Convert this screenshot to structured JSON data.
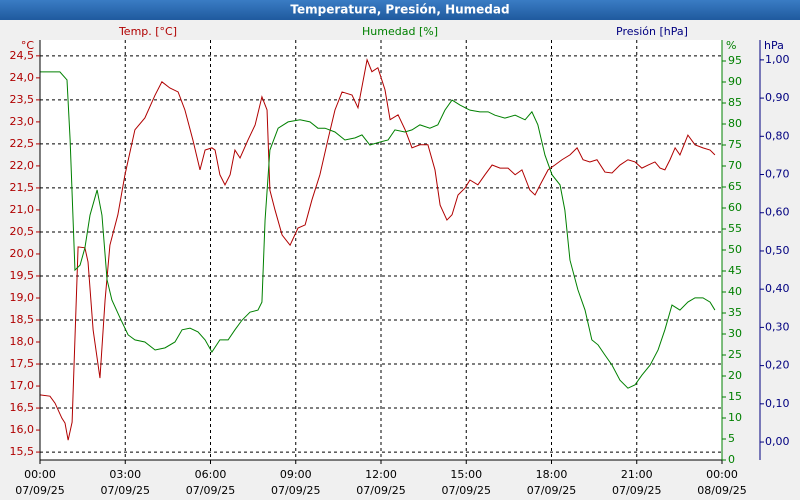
{
  "chart_data": {
    "type": "line",
    "title": "Temperatura, Presión, Humedad",
    "xlim": [
      0,
      24
    ],
    "xticks": [
      {
        "value": 0,
        "label": "00:00"
      },
      {
        "value": 3,
        "label": "03:00"
      },
      {
        "value": 6,
        "label": "06:00"
      },
      {
        "value": 9,
        "label": "09:00"
      },
      {
        "value": 12,
        "label": "12:00"
      },
      {
        "value": 15,
        "label": "15:00"
      },
      {
        "value": 18,
        "label": "18:00"
      },
      {
        "value": 21,
        "label": "21:00"
      },
      {
        "value": 24,
        "label": "00:00"
      }
    ],
    "xtick_dates": [
      "07/09/25",
      "07/09/25",
      "07/09/25",
      "07/09/25",
      "07/09/25",
      "07/09/25",
      "07/09/25",
      "07/09/25",
      "08/09/25"
    ],
    "yunit": "°C",
    "ylim": [
      15.32,
      24.86
    ],
    "yticks": [
      {
        "value": 24.5,
        "label": "24,5"
      },
      {
        "value": 24,
        "label": "24,0"
      },
      {
        "value": 23.5,
        "label": "23,5"
      },
      {
        "value": 23,
        "label": "23,0"
      },
      {
        "value": 22.5,
        "label": "22,5"
      },
      {
        "value": 22,
        "label": "22,0"
      },
      {
        "value": 21.5,
        "label": "21,5"
      },
      {
        "value": 21,
        "label": "21,0"
      },
      {
        "value": 20.5,
        "label": "20,5"
      },
      {
        "value": 20,
        "label": "20,0"
      },
      {
        "value": 19.5,
        "label": "19,5"
      },
      {
        "value": 19,
        "label": "19,0"
      },
      {
        "value": 18.5,
        "label": "18,5"
      },
      {
        "value": 18,
        "label": "18,0"
      },
      {
        "value": 17.5,
        "label": "17,5"
      },
      {
        "value": 17,
        "label": "17,0"
      },
      {
        "value": 16.5,
        "label": "16,5"
      },
      {
        "value": 16,
        "label": "16,0"
      },
      {
        "value": 15.5,
        "label": "15,5"
      }
    ],
    "y2unit": "%",
    "y2lim": [
      0,
      100
    ],
    "y2ticks": [
      0,
      5,
      10,
      15,
      20,
      25,
      30,
      35,
      40,
      45,
      50,
      55,
      60,
      65,
      70,
      75,
      80,
      85,
      90,
      95
    ],
    "y3label": "Presión [hPa]",
    "y3unit": "hPa",
    "y3lim": [
      -0.047,
      1.052
    ],
    "y3ticks": [
      {
        "value": 0,
        "label": "0,00"
      },
      {
        "value": 0.1,
        "label": "0,10"
      },
      {
        "value": 0.2,
        "label": "0,20"
      },
      {
        "value": 0.3,
        "label": "0,30"
      },
      {
        "value": 0.4,
        "label": "0,40"
      },
      {
        "value": 0.5,
        "label": "0,50"
      },
      {
        "value": 0.6,
        "label": "0,60"
      },
      {
        "value": 0.7,
        "label": "0,70"
      },
      {
        "value": 0.8,
        "label": "0,80"
      },
      {
        "value": 0.9,
        "label": "0,90"
      },
      {
        "value": 1,
        "label": "1,00"
      }
    ],
    "grid": true,
    "series": [
      {
        "name": "Temp. [°C]",
        "color": "#b00000",
        "axis": "y",
        "x": [
          0,
          0.35,
          0.53,
          0.77,
          0.88,
          0.99,
          1.13,
          1.34,
          1.58,
          1.69,
          1.87,
          2.11,
          2.29,
          2.46,
          2.74,
          2.99,
          3.34,
          3.69,
          4.05,
          4.29,
          4.57,
          4.86,
          5.1,
          5.38,
          5.63,
          5.81,
          6.05,
          6.16,
          6.33,
          6.51,
          6.69,
          6.86,
          7.04,
          7.32,
          7.57,
          7.81,
          7.99,
          8.09,
          8.27,
          8.52,
          8.8,
          9.08,
          9.33,
          9.57,
          9.85,
          10.13,
          10.38,
          10.63,
          10.98,
          11.19,
          11.51,
          11.68,
          11.89,
          12.14,
          12.32,
          12.6,
          12.85,
          13.09,
          13.37,
          13.65,
          13.9,
          14.08,
          14.32,
          14.5,
          14.71,
          14.96,
          15.13,
          15.41,
          15.66,
          15.91,
          16.19,
          16.47,
          16.72,
          16.96,
          17.24,
          17.42,
          17.6,
          17.88,
          18.12,
          18.37,
          18.65,
          18.9,
          19.11,
          19.35,
          19.6,
          19.88,
          20.13,
          20.41,
          20.69,
          20.94,
          21.18,
          21.4,
          21.64,
          21.82,
          21.99,
          22.17,
          22.35,
          22.52,
          22.8,
          23.05,
          23.33,
          23.58,
          23.75
        ],
        "values": [
          16.8,
          16.77,
          16.61,
          16.27,
          16.16,
          15.77,
          16.18,
          20.16,
          20.14,
          19.82,
          18.27,
          17.18,
          18.95,
          20.2,
          20.89,
          21.8,
          22.82,
          23.09,
          23.61,
          23.91,
          23.77,
          23.68,
          23.27,
          22.59,
          21.91,
          22.36,
          22.41,
          22.36,
          21.8,
          21.57,
          21.8,
          22.36,
          22.18,
          22.59,
          22.93,
          23.57,
          23.27,
          21.45,
          21.0,
          20.43,
          20.2,
          20.59,
          20.66,
          21.23,
          21.8,
          22.59,
          23.27,
          23.68,
          23.61,
          23.32,
          24.41,
          24.14,
          24.23,
          23.73,
          23.05,
          23.16,
          22.82,
          22.41,
          22.48,
          22.48,
          21.91,
          21.11,
          20.77,
          20.89,
          21.34,
          21.5,
          21.68,
          21.57,
          21.8,
          22.02,
          21.95,
          21.95,
          21.8,
          21.91,
          21.45,
          21.34,
          21.57,
          21.91,
          22.02,
          22.14,
          22.25,
          22.41,
          22.14,
          22.09,
          22.14,
          21.86,
          21.84,
          22.02,
          22.14,
          22.09,
          21.95,
          22.02,
          22.09,
          21.95,
          21.91,
          22.14,
          22.41,
          22.25,
          22.7,
          22.48,
          22.41,
          22.36,
          22.25
        ]
      },
      {
        "name": "Humedad [%]",
        "color": "#008000",
        "axis": "y2",
        "x": [
          0,
          0.7,
          0.95,
          1.06,
          1.23,
          1.41,
          1.58,
          1.76,
          2.01,
          2.18,
          2.36,
          2.53,
          2.82,
          3.1,
          3.34,
          3.69,
          4.05,
          4.4,
          4.75,
          5.0,
          5.28,
          5.56,
          5.81,
          6.05,
          6.33,
          6.62,
          6.86,
          7.11,
          7.39,
          7.67,
          7.81,
          7.92,
          8.09,
          8.38,
          8.73,
          9.15,
          9.5,
          9.78,
          10.03,
          10.38,
          10.73,
          11.09,
          11.33,
          11.61,
          11.96,
          12.25,
          12.49,
          12.84,
          13.09,
          13.37,
          13.72,
          14.0,
          14.25,
          14.5,
          14.78,
          15.13,
          15.48,
          15.77,
          16.01,
          16.36,
          16.72,
          17.07,
          17.31,
          17.52,
          17.77,
          18.02,
          18.3,
          18.47,
          18.65,
          18.93,
          19.18,
          19.42,
          19.64,
          19.88,
          20.13,
          20.41,
          20.69,
          20.94,
          21.18,
          21.47,
          21.75,
          21.99,
          22.24,
          22.52,
          22.8,
          23.05,
          23.33,
          23.58,
          23.75
        ],
        "values": [
          92.4,
          92.4,
          90.5,
          76.2,
          45.2,
          46.4,
          50.5,
          58.3,
          64.3,
          58.3,
          42.9,
          38.1,
          33.8,
          29.8,
          28.6,
          28.1,
          26.2,
          26.7,
          28.1,
          31.0,
          31.4,
          30.5,
          28.6,
          25.7,
          28.6,
          28.6,
          31.0,
          33.3,
          35.2,
          35.7,
          37.6,
          57.1,
          73.8,
          79.0,
          80.5,
          81.0,
          80.5,
          79.0,
          79.0,
          78.1,
          76.2,
          76.7,
          77.4,
          75.0,
          75.7,
          76.2,
          78.6,
          78.1,
          78.6,
          79.8,
          79.0,
          79.8,
          83.3,
          85.7,
          84.5,
          83.3,
          82.9,
          82.9,
          82.1,
          81.4,
          82.1,
          81.0,
          82.9,
          79.8,
          72.6,
          67.9,
          65.5,
          59.5,
          47.6,
          40.5,
          35.7,
          28.6,
          27.4,
          25.0,
          22.6,
          19.0,
          17.1,
          17.9,
          20.2,
          22.6,
          26.2,
          31.0,
          36.9,
          35.7,
          37.6,
          38.6,
          38.6,
          37.6,
          35.7
        ]
      }
    ]
  }
}
